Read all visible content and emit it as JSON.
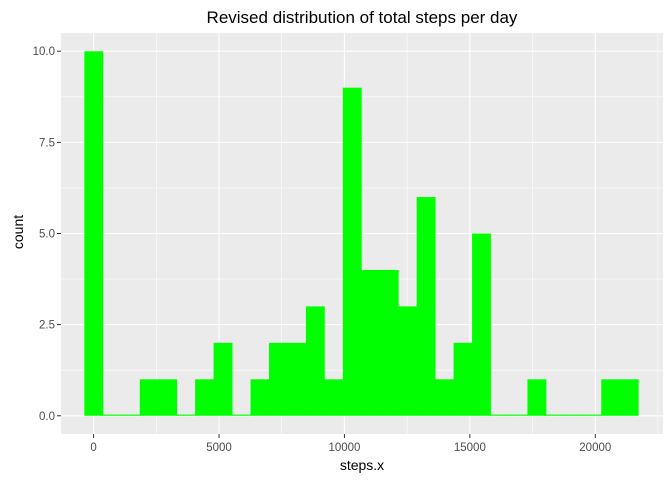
{
  "chart_data": {
    "type": "bar",
    "title": "Revised distribution of total steps per day",
    "xlabel": "steps.x",
    "ylabel": "count",
    "binwidth": 736,
    "bin_centers": [
      0,
      736,
      1472,
      2208,
      2944,
      3680,
      4416,
      5152,
      5888,
      6624,
      7360,
      8096,
      8832,
      9568,
      10304,
      11040,
      11776,
      12512,
      13248,
      13984,
      14720,
      15456,
      16192,
      16928,
      17664,
      18400,
      19136,
      19872,
      20608,
      21344
    ],
    "values": [
      10,
      0,
      0,
      1,
      1,
      0,
      1,
      2,
      0,
      1,
      2,
      2,
      3,
      1,
      9,
      4,
      4,
      3,
      6,
      1,
      2,
      5,
      0,
      0,
      1,
      0,
      0,
      0,
      1,
      1
    ],
    "xlim": [
      -1300,
      22700
    ],
    "ylim": [
      -0.5,
      10.5
    ],
    "x_ticks": [
      0,
      5000,
      10000,
      15000,
      20000
    ],
    "x_tick_labels": [
      "0",
      "5000",
      "10000",
      "15000",
      "20000"
    ],
    "y_ticks": [
      0,
      2.5,
      5,
      7.5,
      10
    ],
    "y_tick_labels": [
      "0.0",
      "2.5",
      "5.0",
      "7.5",
      "10.0"
    ],
    "grid": true,
    "colors": {
      "bar": "#00ff00",
      "panel": "#ebebeb",
      "grid": "#ffffff",
      "tick_text": "#4d4d4d",
      "tick_mark": "#333333"
    }
  }
}
